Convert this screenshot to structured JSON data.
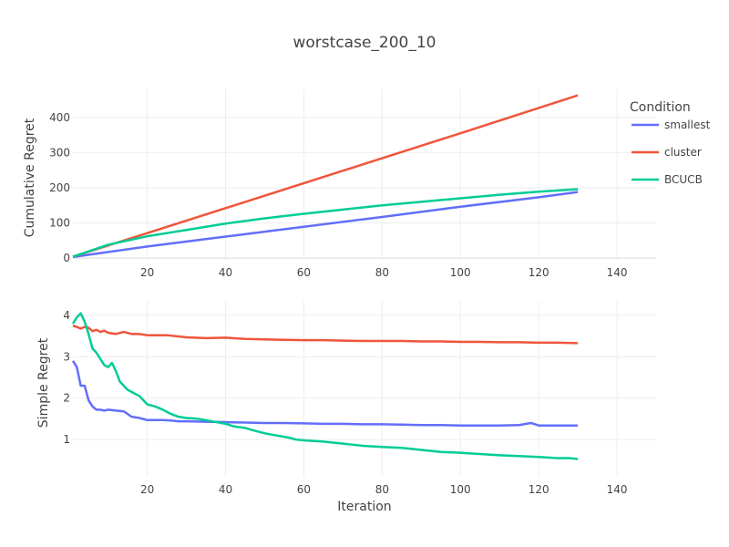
{
  "chart_data": {
    "type": "line",
    "title": "worstcase_200_10",
    "xlabel": "Iteration",
    "legend": {
      "title": "Condition",
      "placement": "top-right"
    },
    "grid": true,
    "subplots": [
      {
        "ylabel": "Cumulative Regret",
        "xlim": [
          1,
          150
        ],
        "ylim": [
          -5,
          480
        ],
        "xticks": [
          20,
          40,
          60,
          80,
          100,
          120,
          140
        ],
        "yticks": [
          0,
          100,
          200,
          300,
          400
        ],
        "series": [
          {
            "name": "smallest",
            "color": "#636efa",
            "x": [
              1,
              20,
              40,
              60,
              80,
              100,
              120,
              130
            ],
            "y": [
              3,
              33,
              61,
              89,
              117,
              146,
              173,
              188
            ]
          },
          {
            "name": "cluster",
            "color": "#ef553b",
            "x": [
              1,
              20,
              40,
              60,
              80,
              100,
              120,
              130
            ],
            "y": [
              4,
              71,
              142,
              213,
              284,
              355,
              427,
              463
            ]
          },
          {
            "name": "BCUCB",
            "color": "#00cc96",
            "x": [
              1,
              10,
              20,
              30,
              40,
              50,
              60,
              70,
              80,
              90,
              100,
              110,
              120,
              130
            ],
            "y": [
              4,
              38,
              62,
              80,
              98,
              113,
              126,
              138,
              150,
              160,
              170,
              180,
              189,
              196
            ]
          }
        ]
      },
      {
        "ylabel": "Simple Regret",
        "xlim": [
          1,
          150
        ],
        "ylim": [
          0.1,
          4.35
        ],
        "xticks": [
          20,
          40,
          60,
          80,
          100,
          120,
          140
        ],
        "yticks": [
          1,
          2,
          3,
          4
        ],
        "series": [
          {
            "name": "smallest",
            "color": "#636efa",
            "x": [
              1,
              2,
              3,
              4,
              5,
              6,
              7,
              8,
              9,
              10,
              12,
              14,
              16,
              18,
              20,
              22,
              24,
              26,
              28,
              30,
              35,
              40,
              45,
              50,
              55,
              60,
              65,
              70,
              75,
              80,
              85,
              90,
              95,
              100,
              105,
              110,
              115,
              118,
              120,
              125,
              130
            ],
            "y": [
              2.9,
              2.75,
              2.3,
              2.3,
              1.95,
              1.8,
              1.72,
              1.72,
              1.7,
              1.72,
              1.7,
              1.68,
              1.55,
              1.52,
              1.47,
              1.47,
              1.47,
              1.46,
              1.44,
              1.44,
              1.43,
              1.42,
              1.41,
              1.4,
              1.4,
              1.39,
              1.38,
              1.38,
              1.37,
              1.37,
              1.36,
              1.35,
              1.35,
              1.34,
              1.34,
              1.34,
              1.35,
              1.4,
              1.34,
              1.34,
              1.34
            ]
          },
          {
            "name": "cluster",
            "color": "#ef553b",
            "x": [
              1,
              2,
              3,
              4,
              5,
              6,
              7,
              8,
              9,
              10,
              12,
              14,
              16,
              18,
              20,
              25,
              30,
              35,
              40,
              45,
              50,
              55,
              60,
              65,
              70,
              75,
              80,
              85,
              90,
              95,
              100,
              105,
              110,
              115,
              120,
              125,
              130
            ],
            "y": [
              3.75,
              3.72,
              3.68,
              3.72,
              3.7,
              3.62,
              3.65,
              3.6,
              3.63,
              3.58,
              3.55,
              3.6,
              3.55,
              3.55,
              3.52,
              3.52,
              3.47,
              3.45,
              3.46,
              3.43,
              3.42,
              3.41,
              3.4,
              3.4,
              3.39,
              3.38,
              3.38,
              3.38,
              3.37,
              3.37,
              3.36,
              3.36,
              3.35,
              3.35,
              3.34,
              3.34,
              3.33
            ]
          },
          {
            "name": "BCUCB",
            "color": "#00cc96",
            "x": [
              1,
              2,
              3,
              4,
              5,
              6,
              7,
              8,
              9,
              10,
              11,
              12,
              13,
              14,
              15,
              16,
              17,
              18,
              19,
              20,
              22,
              24,
              26,
              28,
              30,
              33,
              36,
              40,
              42,
              45,
              48,
              50,
              53,
              56,
              58,
              60,
              65,
              70,
              75,
              80,
              85,
              90,
              95,
              100,
              105,
              110,
              115,
              120,
              125,
              128,
              130
            ],
            "y": [
              3.8,
              3.95,
              4.05,
              3.85,
              3.55,
              3.2,
              3.1,
              2.95,
              2.8,
              2.75,
              2.85,
              2.65,
              2.4,
              2.3,
              2.2,
              2.15,
              2.1,
              2.05,
              1.95,
              1.85,
              1.8,
              1.72,
              1.62,
              1.55,
              1.52,
              1.5,
              1.45,
              1.38,
              1.32,
              1.28,
              1.2,
              1.15,
              1.1,
              1.05,
              1.0,
              0.98,
              0.95,
              0.9,
              0.85,
              0.82,
              0.8,
              0.75,
              0.7,
              0.68,
              0.65,
              0.62,
              0.6,
              0.58,
              0.55,
              0.55,
              0.53
            ]
          }
        ]
      }
    ]
  }
}
